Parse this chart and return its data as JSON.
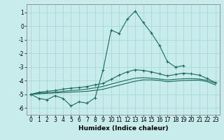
{
  "xlabel": "Humidex (Indice chaleur)",
  "bg_color": "#c8ecec",
  "grid_color": "#a8d8d8",
  "line_color": "#1a6b5a",
  "xlim": [
    -0.5,
    23.5
  ],
  "ylim": [
    -6.5,
    1.6
  ],
  "yticks": [
    1,
    0,
    -1,
    -2,
    -3,
    -4,
    -5,
    -6
  ],
  "xticks": [
    0,
    1,
    2,
    3,
    4,
    5,
    6,
    7,
    8,
    9,
    10,
    11,
    12,
    13,
    14,
    15,
    16,
    17,
    18,
    19,
    20,
    21,
    22,
    23
  ],
  "x_data": [
    0,
    1,
    2,
    3,
    4,
    5,
    6,
    7,
    8,
    9,
    10,
    11,
    12,
    13,
    14,
    15,
    16,
    17,
    18,
    19,
    20,
    21,
    22,
    23
  ],
  "line1_y": [
    -5.0,
    -5.3,
    -5.4,
    -5.1,
    -5.3,
    -5.85,
    -5.55,
    -5.65,
    -5.25,
    -3.2,
    -0.3,
    -0.55,
    0.5,
    1.1,
    0.25,
    -0.5,
    -1.4,
    -2.6,
    -3.0,
    -2.9,
    null,
    null,
    null,
    null
  ],
  "line2_y": [
    -5.0,
    -4.85,
    -4.78,
    -4.72,
    -4.62,
    -4.55,
    -4.5,
    -4.43,
    -4.3,
    -4.2,
    -3.9,
    -3.6,
    -3.35,
    -3.2,
    -3.25,
    -3.35,
    -3.5,
    -3.65,
    -3.55,
    -3.45,
    -3.5,
    -3.6,
    -3.85,
    -4.15
  ],
  "line3_y": [
    -5.0,
    -4.92,
    -4.88,
    -4.84,
    -4.78,
    -4.73,
    -4.68,
    -4.62,
    -4.52,
    -4.42,
    -4.25,
    -4.1,
    -3.95,
    -3.82,
    -3.78,
    -3.82,
    -3.88,
    -3.95,
    -3.9,
    -3.86,
    -3.85,
    -3.88,
    -3.98,
    -4.2
  ],
  "line4_y": [
    -5.0,
    -4.96,
    -4.93,
    -4.9,
    -4.87,
    -4.84,
    -4.81,
    -4.78,
    -4.71,
    -4.63,
    -4.48,
    -4.33,
    -4.18,
    -4.04,
    -3.94,
    -3.94,
    -3.98,
    -4.08,
    -4.03,
    -3.99,
    -3.97,
    -3.96,
    -4.08,
    -4.32
  ]
}
